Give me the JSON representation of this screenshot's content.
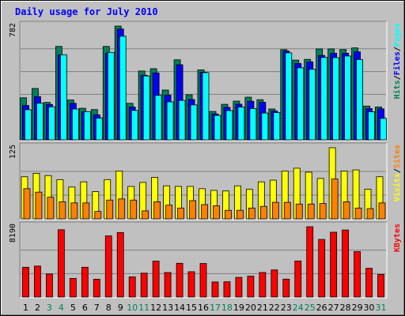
{
  "title": "Daily usage for July 2010",
  "colors": {
    "hits": "#00805c",
    "files": "#0000ff",
    "pages": "#00ffff",
    "visits": "#ffff00",
    "sites": "#ff8000",
    "kbytes": "#ff0000",
    "weekend_label": "#00805c",
    "weekday_label": "#000000"
  },
  "chart_data": {
    "type": "bar",
    "categories": [
      "1",
      "2",
      "3",
      "4",
      "5",
      "6",
      "7",
      "8",
      "9",
      "10",
      "11",
      "12",
      "13",
      "14",
      "15",
      "16",
      "17",
      "18",
      "19",
      "20",
      "21",
      "22",
      "23",
      "24",
      "25",
      "26",
      "27",
      "28",
      "29",
      "30",
      "31"
    ],
    "weekend_days": [
      "3",
      "4",
      "10",
      "11",
      "17",
      "18",
      "24",
      "25",
      "31"
    ],
    "panels": [
      {
        "name": "hits-files-pages",
        "max_label": "782",
        "ylim": [
          0,
          782
        ],
        "legend": [
          {
            "text": "Hits",
            "color": "#00805c"
          },
          {
            "text": "Files",
            "color": "#0000ff"
          },
          {
            "text": "Pages",
            "color": "#00ffff"
          }
        ],
        "legend_separator": "/",
        "series": [
          {
            "name": "Hits",
            "color": "#00805c",
            "values": [
              289,
              353,
              257,
              642,
              274,
              217,
              208,
              642,
              782,
              251,
              473,
              489,
              342,
              550,
              310,
              481,
              195,
              244,
              266,
              293,
              276,
              212,
              620,
              548,
              553,
              625,
              625,
              620,
              632,
              232,
              226
            ]
          },
          {
            "name": "Files",
            "color": "#0000ff",
            "values": [
              236,
              297,
              243,
              584,
              251,
              194,
              172,
              594,
              762,
              225,
              444,
              460,
              307,
              516,
              277,
              465,
              178,
              223,
              245,
              265,
              258,
              198,
              610,
              525,
              536,
              580,
              595,
              595,
              605,
              215,
              213
            ]
          },
          {
            "name": "Pages",
            "color": "#00ffff",
            "values": [
              207,
              252,
              227,
              585,
              212,
              194,
              149,
              601,
              712,
              202,
              439,
              306,
              261,
              271,
              240,
              462,
              168,
              201,
              225,
              215,
              184,
              187,
              598,
              495,
              485,
              566,
              565,
              576,
              552,
              193,
              147
            ]
          }
        ]
      },
      {
        "name": "visits-sites",
        "max_label": "125",
        "ylim": [
          0,
          125
        ],
        "legend": [
          {
            "text": "Visits",
            "color": "#ffff00"
          },
          {
            "text": "Sites",
            "color": "#ff8000"
          }
        ],
        "legend_separator": "/",
        "series": [
          {
            "name": "Visits",
            "color": "#ffff00",
            "values": [
              74,
              80,
              76,
              69,
              56,
              65,
              48,
              69,
              84,
              57,
              64,
              73,
              58,
              57,
              57,
              53,
              50,
              49,
              58,
              52,
              65,
              68,
              84,
              89,
              82,
              71,
              125,
              84,
              86,
              52,
              74
            ]
          },
          {
            "name": "Sites",
            "color": "#ff8000",
            "values": [
              53,
              47,
              38,
              30,
              28,
              28,
              13,
              33,
              35,
              33,
              14,
              30,
              24,
              19,
              32,
              25,
              23,
              15,
              15,
              19,
              22,
              29,
              29,
              26,
              26,
              27,
              70,
              30,
              19,
              18,
              28
            ]
          }
        ]
      },
      {
        "name": "kbytes",
        "max_label": "8190",
        "ylim": [
          0,
          8190
        ],
        "legend": [
          {
            "text": "KBytes",
            "color": "#ff0000"
          }
        ],
        "legend_separator": "",
        "series": [
          {
            "name": "KBytes",
            "color": "#ff0000",
            "values": [
              3470,
              3610,
              2690,
              7840,
              2170,
              3470,
              2080,
              7120,
              7520,
              2350,
              2780,
              4180,
              2860,
              3930,
              2950,
              3910,
              1760,
              1780,
              2290,
              2430,
              2860,
              3160,
              2090,
              4200,
              8190,
              6710,
              7550,
              7810,
              5290,
              3350,
              2630
            ]
          }
        ]
      }
    ]
  }
}
